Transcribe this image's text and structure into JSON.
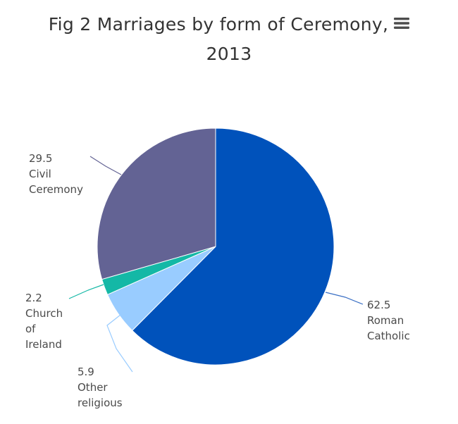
{
  "title": {
    "line1": "Fig 2 Marriages by form of Ceremony,",
    "line2": "2013"
  },
  "menu_button": {
    "icon": "hamburger-menu-icon"
  },
  "chart_data": {
    "type": "pie",
    "title": "Fig 2 Marriages by form of Ceremony, 2013",
    "start_angle_deg": 0,
    "direction": "clockwise",
    "slices": [
      {
        "value": "62.5",
        "label": [
          "Roman",
          "Catholic"
        ],
        "color": "#0052bb",
        "line_color": "#3a6fc4"
      },
      {
        "value": "5.9",
        "label": [
          "Other",
          "religious"
        ],
        "color": "#99ccff",
        "line_color": "#99ccff"
      },
      {
        "value": "2.2",
        "label": [
          "Church",
          "of",
          "Ireland"
        ],
        "color": "#14b8a6",
        "line_color": "#14b8a6"
      },
      {
        "value": "29.5",
        "label": [
          "Civil",
          "Ceremony"
        ],
        "color": "#636394",
        "line_color": "#636394"
      }
    ]
  }
}
